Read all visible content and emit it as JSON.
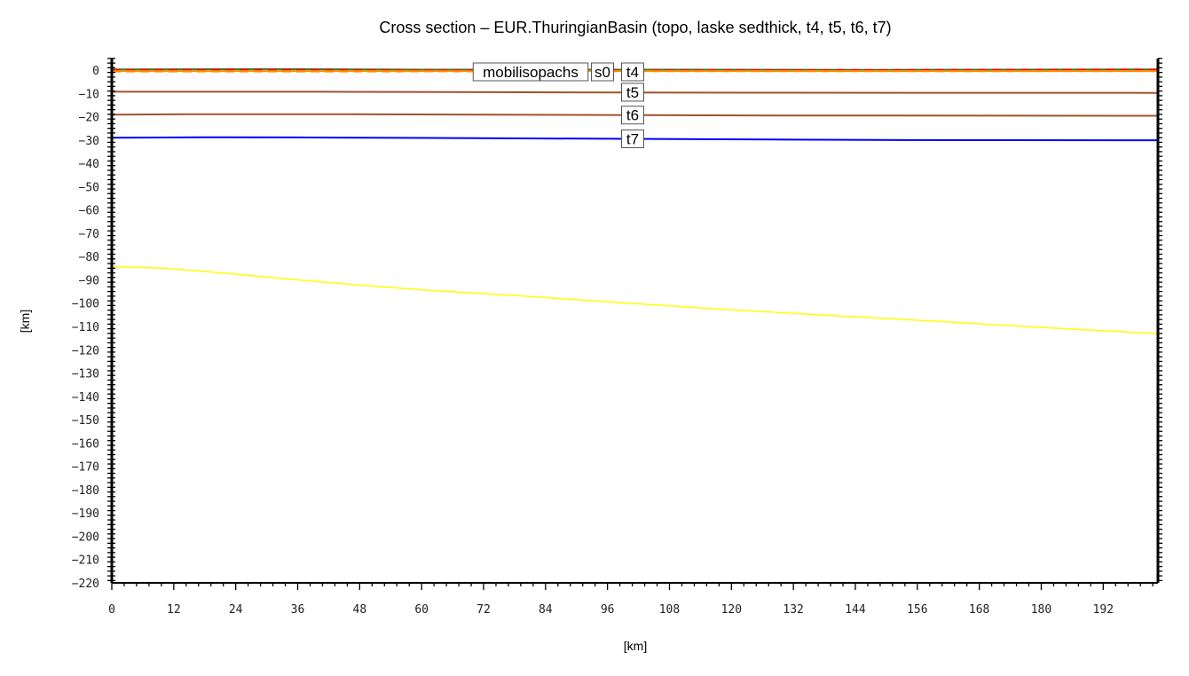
{
  "chart_data": {
    "type": "line",
    "title": "Cross section – EUR.ThuringianBasin (topo, laske sedthick, t4, t5, t6, t7)",
    "xlabel": "[km]",
    "ylabel": "[km]",
    "xlim": [
      0,
      202.6
    ],
    "ylim": [
      -220,
      5
    ],
    "xticks": [
      0,
      12,
      24,
      36,
      48,
      60,
      72,
      84,
      96,
      108,
      120,
      132,
      144,
      156,
      168,
      180,
      192
    ],
    "yticks": [
      0,
      -10,
      -20,
      -30,
      -40,
      -50,
      -60,
      -70,
      -80,
      -90,
      -100,
      -110,
      -120,
      -130,
      -140,
      -150,
      -160,
      -170,
      -180,
      -190,
      -200,
      -210,
      -220
    ],
    "grid": false,
    "series": [
      {
        "name": "topo",
        "color": "#3a7a2a",
        "dash": false,
        "x": [
          0,
          30,
          60,
          100,
          150,
          202.6
        ],
        "y": [
          0.3,
          0.4,
          0.2,
          0.2,
          0.1,
          0.3
        ]
      },
      {
        "name": "laske sedthick",
        "color": "#ff0000",
        "dash": true,
        "x": [
          0,
          30,
          60,
          100,
          150,
          202.6
        ],
        "y": [
          0,
          0.1,
          -0.1,
          -0.1,
          0,
          0.2
        ]
      },
      {
        "name": "mobilisopachs",
        "color": "#ff8c00",
        "dash": true,
        "x": [
          0,
          50,
          100,
          150,
          202.6
        ],
        "y": [
          -0.6,
          -0.6,
          -0.5,
          -0.5,
          -0.4
        ]
      },
      {
        "name": "t4",
        "color": "#ff8c00",
        "dash": false,
        "x": [
          0,
          100,
          202.6
        ],
        "y": [
          -0.4,
          -0.4,
          -0.4
        ]
      },
      {
        "name": "t5",
        "color": "#a0522d",
        "dash": false,
        "x": [
          0,
          40,
          80,
          125,
          202.6
        ],
        "y": [
          -9.3,
          -9.3,
          -9.5,
          -9.7,
          -9.8
        ]
      },
      {
        "name": "t6",
        "color": "#a0522d",
        "dash": false,
        "x": [
          0,
          15,
          45,
          80,
          130,
          202.6
        ],
        "y": [
          -19.1,
          -18.9,
          -18.9,
          -19.2,
          -19.5,
          -19.6
        ]
      },
      {
        "name": "t7",
        "color": "#0000ff",
        "dash": false,
        "x": [
          0,
          18,
          35,
          62,
          80,
          100,
          128,
          148,
          202.6
        ],
        "y": [
          -29.0,
          -28.8,
          -28.9,
          -29.1,
          -29.3,
          -29.5,
          -29.8,
          -30.0,
          -30.1
        ]
      },
      {
        "name": "",
        "color": "#ffff00",
        "dash": false,
        "x": [
          0,
          10,
          20,
          40,
          60,
          80,
          100,
          120,
          140,
          160,
          180,
          202.6
        ],
        "y": [
          -84.3,
          -85.0,
          -86.8,
          -90.8,
          -94.3,
          -97.0,
          -100.0,
          -102.9,
          -105.4,
          -107.8,
          -110.4,
          -113.1
        ]
      }
    ],
    "line_labels": [
      "mobilisopachs",
      "s0",
      "t4",
      "t5",
      "t6",
      "t7"
    ]
  }
}
